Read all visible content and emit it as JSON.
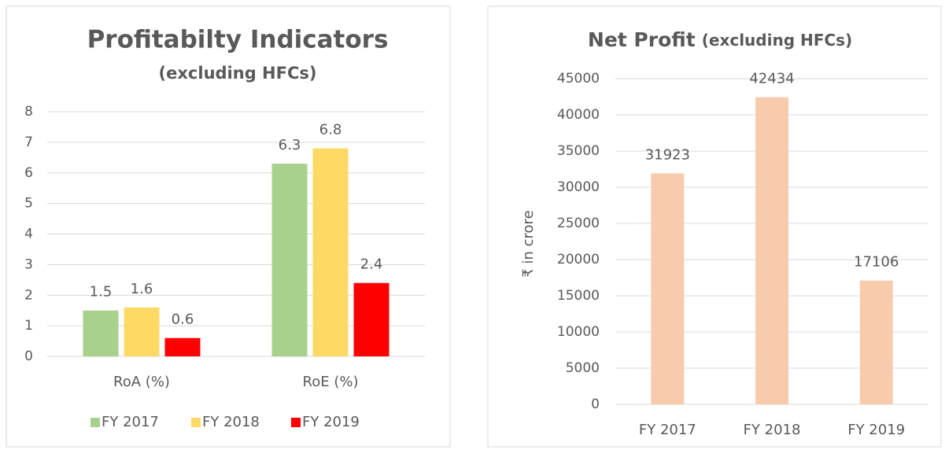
{
  "chart_data": [
    {
      "type": "bar",
      "title": "Profitabilty Indicators",
      "subtitle": "(excluding HFCs)",
      "categories": [
        "RoA (%)",
        "RoE (%)"
      ],
      "series": [
        {
          "name": "FY 2017",
          "color": "#a9d18e",
          "values": [
            1.5,
            6.3
          ]
        },
        {
          "name": "FY 2018",
          "color": "#ffd966",
          "values": [
            1.6,
            6.8
          ]
        },
        {
          "name": "FY 2019",
          "color": "#ff0000",
          "values": [
            0.6,
            2.4
          ]
        }
      ],
      "ylim": [
        0,
        8
      ],
      "yticks": [
        0,
        1,
        2,
        3,
        4,
        5,
        6,
        7,
        8
      ],
      "grid": true,
      "legend": "bottom"
    },
    {
      "type": "bar",
      "title": "Net Profit",
      "subtitle": "(excluding HFCs)",
      "ylabel": "₹ in crore",
      "categories": [
        "FY 2017",
        "FY 2018",
        "FY 2019"
      ],
      "values": [
        31923,
        42434,
        17106
      ],
      "color": "#f8cbad",
      "ylim": [
        0,
        45000
      ],
      "yticks": [
        0,
        5000,
        10000,
        15000,
        20000,
        25000,
        30000,
        35000,
        40000,
        45000
      ],
      "grid": true
    }
  ]
}
